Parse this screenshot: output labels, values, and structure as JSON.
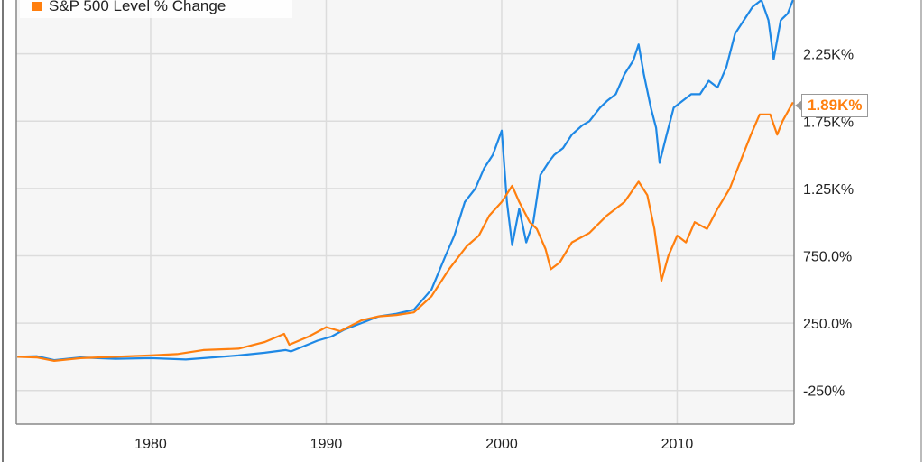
{
  "chart_data": {
    "type": "line",
    "title": "",
    "xlabel": "",
    "ylabel": "",
    "xlim": [
      1972.34,
      2016.66
    ],
    "ylim": [
      -500,
      2650
    ],
    "grid": true,
    "legend_position": "top-left",
    "x_ticks": [
      {
        "value": 1980,
        "label": "1980"
      },
      {
        "value": 1990,
        "label": "1990"
      },
      {
        "value": 2000,
        "label": "2000"
      },
      {
        "value": 2010,
        "label": "2010"
      }
    ],
    "y_ticks": [
      {
        "value": -250,
        "label": "-250%"
      },
      {
        "value": 250,
        "label": "250.0%"
      },
      {
        "value": 750,
        "label": "750.0%"
      },
      {
        "value": 1250,
        "label": "1.25K%"
      },
      {
        "value": 1750,
        "label": "1.75K%"
      },
      {
        "value": 2250,
        "label": "2.25K%"
      }
    ],
    "series": [
      {
        "name": "",
        "color": "#1e88e5",
        "points": [
          [
            1972.4,
            0
          ],
          [
            1973.5,
            5
          ],
          [
            1974.5,
            -25
          ],
          [
            1976,
            -5
          ],
          [
            1978,
            -15
          ],
          [
            1980,
            -10
          ],
          [
            1982,
            -20
          ],
          [
            1983,
            -10
          ],
          [
            1985,
            10
          ],
          [
            1986.5,
            30
          ],
          [
            1987.7,
            50
          ],
          [
            1988,
            40
          ],
          [
            1989.5,
            120
          ],
          [
            1990.3,
            150
          ],
          [
            1991,
            200
          ],
          [
            1992,
            250
          ],
          [
            1993,
            300
          ],
          [
            1994,
            320
          ],
          [
            1995,
            350
          ],
          [
            1996,
            500
          ],
          [
            1996.8,
            750
          ],
          [
            1997.3,
            900
          ],
          [
            1997.9,
            1150
          ],
          [
            1998.5,
            1250
          ],
          [
            1999,
            1400
          ],
          [
            1999.5,
            1500
          ],
          [
            2000,
            1680
          ],
          [
            2000.3,
            1150
          ],
          [
            2000.6,
            830
          ],
          [
            2001,
            1100
          ],
          [
            2001.4,
            850
          ],
          [
            2001.8,
            1000
          ],
          [
            2002.2,
            1350
          ],
          [
            2002.7,
            1450
          ],
          [
            2003,
            1500
          ],
          [
            2003.5,
            1550
          ],
          [
            2004,
            1650
          ],
          [
            2004.6,
            1720
          ],
          [
            2005,
            1750
          ],
          [
            2005.6,
            1850
          ],
          [
            2006,
            1900
          ],
          [
            2006.5,
            1950
          ],
          [
            2007,
            2100
          ],
          [
            2007.5,
            2200
          ],
          [
            2007.8,
            2320
          ],
          [
            2008.1,
            2100
          ],
          [
            2008.5,
            1850
          ],
          [
            2008.8,
            1700
          ],
          [
            2009.0,
            1440
          ],
          [
            2009.4,
            1650
          ],
          [
            2009.8,
            1850
          ],
          [
            2010.3,
            1900
          ],
          [
            2010.8,
            1950
          ],
          [
            2011.3,
            1950
          ],
          [
            2011.8,
            2050
          ],
          [
            2012.3,
            2000
          ],
          [
            2012.8,
            2150
          ],
          [
            2013.3,
            2400
          ],
          [
            2013.8,
            2500
          ],
          [
            2014.3,
            2600
          ],
          [
            2014.8,
            2650
          ],
          [
            2015.2,
            2500
          ],
          [
            2015.5,
            2210
          ],
          [
            2015.9,
            2500
          ],
          [
            2016.3,
            2550
          ],
          [
            2016.6,
            2650
          ]
        ]
      },
      {
        "name": "S&P 500 Level % Change",
        "color": "#ff7f0e",
        "points": [
          [
            1972.4,
            0
          ],
          [
            1973.5,
            -5
          ],
          [
            1974.5,
            -30
          ],
          [
            1976,
            -10
          ],
          [
            1978,
            0
          ],
          [
            1980,
            10
          ],
          [
            1981.5,
            20
          ],
          [
            1983,
            50
          ],
          [
            1985,
            60
          ],
          [
            1986.5,
            110
          ],
          [
            1987.6,
            170
          ],
          [
            1987.9,
            90
          ],
          [
            1989,
            150
          ],
          [
            1990,
            220
          ],
          [
            1990.8,
            190
          ],
          [
            1992,
            270
          ],
          [
            1993,
            300
          ],
          [
            1994,
            310
          ],
          [
            1995,
            330
          ],
          [
            1996,
            450
          ],
          [
            1997,
            650
          ],
          [
            1998,
            820
          ],
          [
            1998.7,
            900
          ],
          [
            1999.3,
            1050
          ],
          [
            2000,
            1150
          ],
          [
            2000.6,
            1270
          ],
          [
            2001,
            1150
          ],
          [
            2001.6,
            1000
          ],
          [
            2002,
            950
          ],
          [
            2002.5,
            800
          ],
          [
            2002.8,
            650
          ],
          [
            2003.3,
            700
          ],
          [
            2004,
            850
          ],
          [
            2005,
            920
          ],
          [
            2006,
            1050
          ],
          [
            2007,
            1150
          ],
          [
            2007.8,
            1300
          ],
          [
            2008.3,
            1200
          ],
          [
            2008.7,
            950
          ],
          [
            2009.1,
            565
          ],
          [
            2009.5,
            750
          ],
          [
            2010,
            900
          ],
          [
            2010.5,
            850
          ],
          [
            2011,
            1000
          ],
          [
            2011.7,
            950
          ],
          [
            2012.3,
            1100
          ],
          [
            2013,
            1250
          ],
          [
            2013.6,
            1450
          ],
          [
            2014.2,
            1650
          ],
          [
            2014.7,
            1800
          ],
          [
            2015.3,
            1800
          ],
          [
            2015.7,
            1650
          ],
          [
            2016.0,
            1750
          ],
          [
            2016.6,
            1890
          ]
        ]
      }
    ],
    "last_value_label": "1.89K%"
  }
}
